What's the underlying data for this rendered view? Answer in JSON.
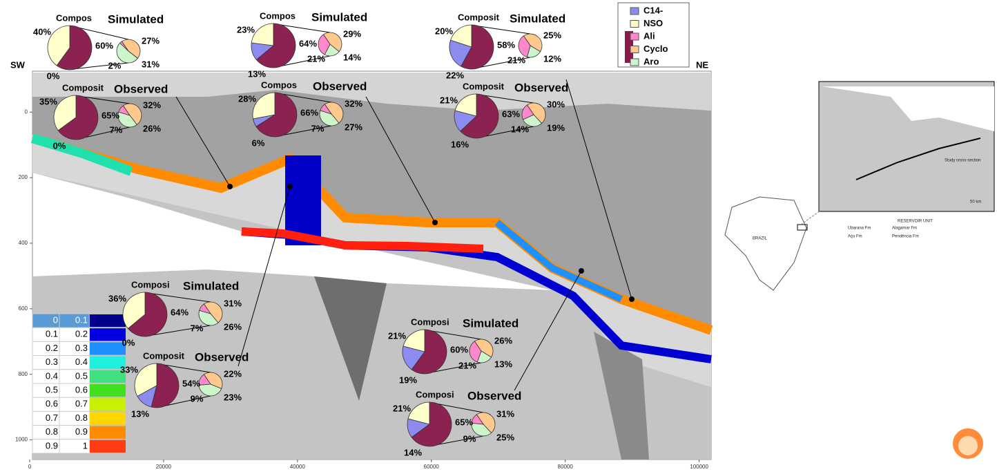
{
  "section": {
    "left_label": "SW",
    "right_label": "NE",
    "xlim": [
      0,
      102000
    ],
    "ylim": [
      -125,
      1060
    ],
    "xticks": [
      0,
      20000,
      40000,
      60000,
      80000,
      100000
    ],
    "yticks": [
      0,
      200,
      400,
      600,
      800,
      1000
    ]
  },
  "legend": [
    {
      "name": "C14-",
      "color": "#8c8cf0"
    },
    {
      "name": "NSO",
      "color": "#ffffcc"
    },
    {
      "name": "Ali",
      "color": "#ff88cc"
    },
    {
      "name": "Cyclo",
      "color": "#ffc88c"
    },
    {
      "name": "Aro",
      "color": "#ccf5cc"
    }
  ],
  "hc_color": "#8b2252",
  "color_scale": [
    {
      "from": 0,
      "to": 0.1,
      "color": "#00008b"
    },
    {
      "from": 0.1,
      "to": 0.2,
      "color": "#0000e0"
    },
    {
      "from": 0.2,
      "to": 0.3,
      "color": "#1e90ff"
    },
    {
      "from": 0.3,
      "to": 0.4,
      "color": "#20f0e0"
    },
    {
      "from": 0.4,
      "to": 0.5,
      "color": "#40e080"
    },
    {
      "from": 0.5,
      "to": 0.6,
      "color": "#40e020"
    },
    {
      "from": 0.6,
      "to": 0.7,
      "color": "#c8f000"
    },
    {
      "from": 0.7,
      "to": 0.8,
      "color": "#ffd700"
    },
    {
      "from": 0.8,
      "to": 0.9,
      "color": "#ff8c00"
    },
    {
      "from": 0.9,
      "to": 1,
      "color": "#ff3c14"
    }
  ],
  "pies": [
    {
      "header": "Compos",
      "title": "Simulated",
      "values": [
        40,
        0,
        60
      ],
      "value_labels": [
        "40%",
        "0%",
        "60%"
      ],
      "sub_values": [
        27,
        2,
        31
      ],
      "sub_value_labels": [
        "27%",
        "2%",
        "31%"
      ]
    },
    {
      "header": "Composit",
      "title": "Observed",
      "values": [
        35,
        0,
        65
      ],
      "value_labels": [
        "35%",
        "0%",
        "65%"
      ],
      "sub_values": [
        32,
        7,
        26
      ],
      "sub_value_labels": [
        "32%",
        "7%",
        "26%"
      ]
    },
    {
      "header": "Compos",
      "title": "Simulated",
      "values": [
        23,
        13,
        64
      ],
      "value_labels": [
        "23%",
        "13%",
        "64%"
      ],
      "sub_values": [
        29,
        21,
        14
      ],
      "sub_value_labels": [
        "29%",
        "21%",
        "14%"
      ]
    },
    {
      "header": "Compos",
      "title": "Observed",
      "values": [
        28,
        6,
        66
      ],
      "value_labels": [
        "28%",
        "6%",
        "66%"
      ],
      "sub_values": [
        32,
        7,
        27
      ],
      "sub_value_labels": [
        "32%",
        "7%",
        "27%"
      ]
    },
    {
      "header": "Composit",
      "title": "Simulated",
      "values": [
        20,
        22,
        58
      ],
      "value_labels": [
        "20%",
        "22%",
        "58%"
      ],
      "sub_values": [
        25,
        21,
        12
      ],
      "sub_value_labels": [
        "25%",
        "21%",
        "12%"
      ]
    },
    {
      "header": "Composit",
      "title": "Observed",
      "values": [
        21,
        16,
        63
      ],
      "value_labels": [
        "21%",
        "16%",
        "63%"
      ],
      "sub_values": [
        30,
        14,
        19
      ],
      "sub_value_labels": [
        "30%",
        "14%",
        "19%"
      ]
    },
    {
      "header": "Composi",
      "title": "Simulated",
      "values": [
        36,
        0,
        64
      ],
      "value_labels": [
        "36%",
        "0%",
        "64%"
      ],
      "sub_values": [
        31,
        7,
        26
      ],
      "sub_value_labels": [
        "31%",
        "7%",
        "26%"
      ]
    },
    {
      "header": "Composit",
      "title": "Observed",
      "values": [
        33,
        13,
        54
      ],
      "value_labels": [
        "33%",
        "13%",
        "54%"
      ],
      "sub_values": [
        22,
        9,
        23
      ],
      "sub_value_labels": [
        "22%",
        "9%",
        "23%"
      ]
    },
    {
      "header": "Composi",
      "title": "Simulated",
      "values": [
        21,
        19,
        60
      ],
      "value_labels": [
        "21%",
        "19%",
        "60%"
      ],
      "sub_values": [
        26,
        21,
        13
      ],
      "sub_value_labels": [
        "26%",
        "21%",
        "13%"
      ]
    },
    {
      "header": "Composi",
      "title": "Observed",
      "values": [
        21,
        14,
        65
      ],
      "value_labels": [
        "21%",
        "14%",
        "65%"
      ],
      "sub_values": [
        31,
        9,
        25
      ],
      "sub_value_labels": [
        "31%",
        "9%",
        "25%"
      ]
    }
  ],
  "map": {
    "country": "BRAZIL",
    "legend_title": "RESERVOIR UNIT",
    "units": [
      "Ubarana Fm",
      "Alagamar Fm",
      "Açu Fm",
      "Pendência Fm"
    ],
    "scale": "50 km",
    "annotation": "Study cross-section"
  }
}
